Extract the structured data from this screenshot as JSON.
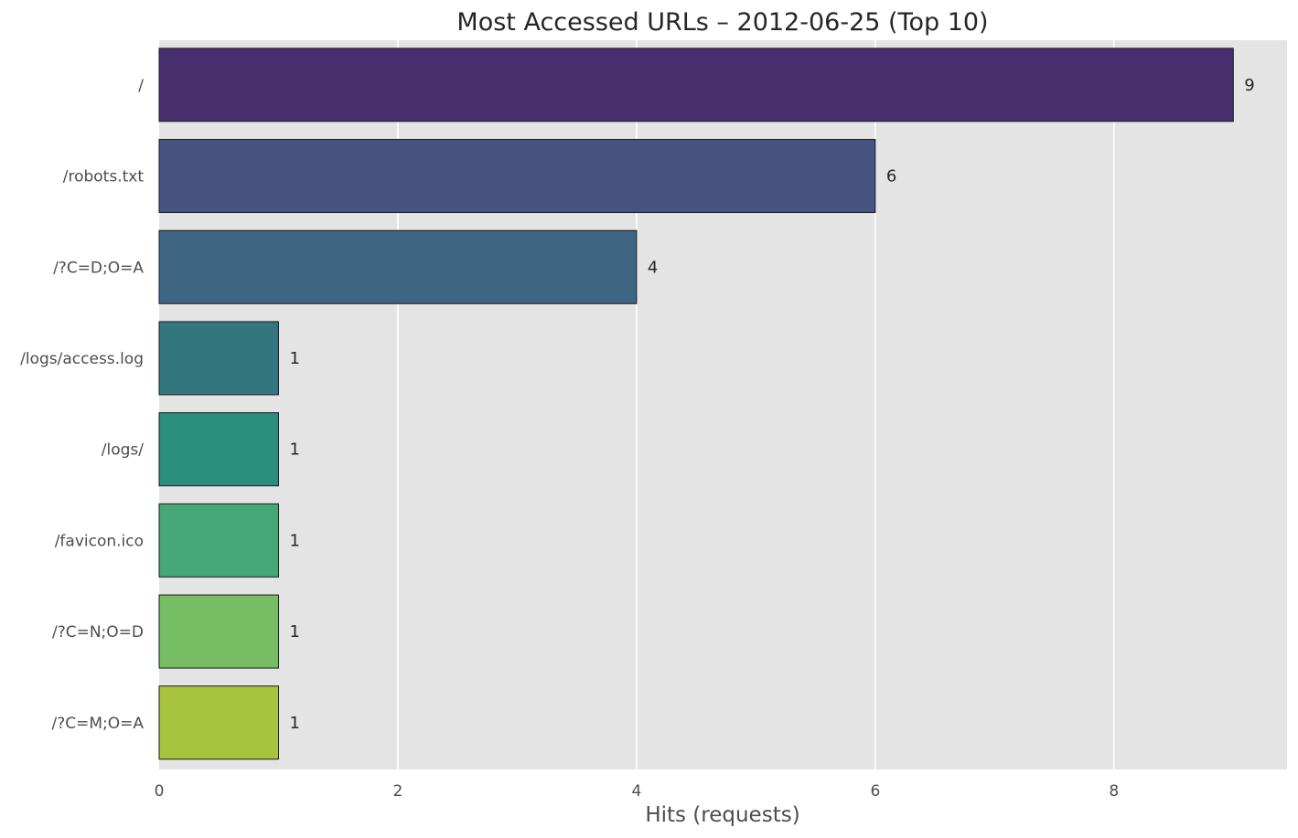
{
  "chart_data": {
    "type": "bar",
    "orientation": "horizontal",
    "title": "Most Accessed URLs – 2012-06-25 (Top 10)",
    "xlabel": "Hits (requests)",
    "ylabel": "",
    "categories": [
      "/",
      "/robots.txt",
      "/?C=D;O=A",
      "/logs/access.log",
      "/logs/",
      "/favicon.ico",
      "/?C=N;O=D",
      "/?C=M;O=A"
    ],
    "values": [
      9,
      6,
      4,
      1,
      1,
      1,
      1,
      1
    ],
    "data_labels": [
      "9",
      "6",
      "4",
      "1",
      "1",
      "1",
      "1",
      "1"
    ],
    "xlim": [
      0,
      9.45
    ],
    "xticks": [
      0,
      2,
      4,
      6,
      8
    ],
    "xtick_labels": [
      "0",
      "2",
      "4",
      "6",
      "8"
    ],
    "grid": true,
    "colors": [
      "#482f6e",
      "#465280",
      "#3e6582",
      "#34767e",
      "#2b8d7b",
      "#46a876",
      "#76bd64",
      "#a8c43f"
    ],
    "background": "#e4e4e4",
    "gridline_color": "#ffffff",
    "bar_edge_color": "#1a1a1a"
  }
}
